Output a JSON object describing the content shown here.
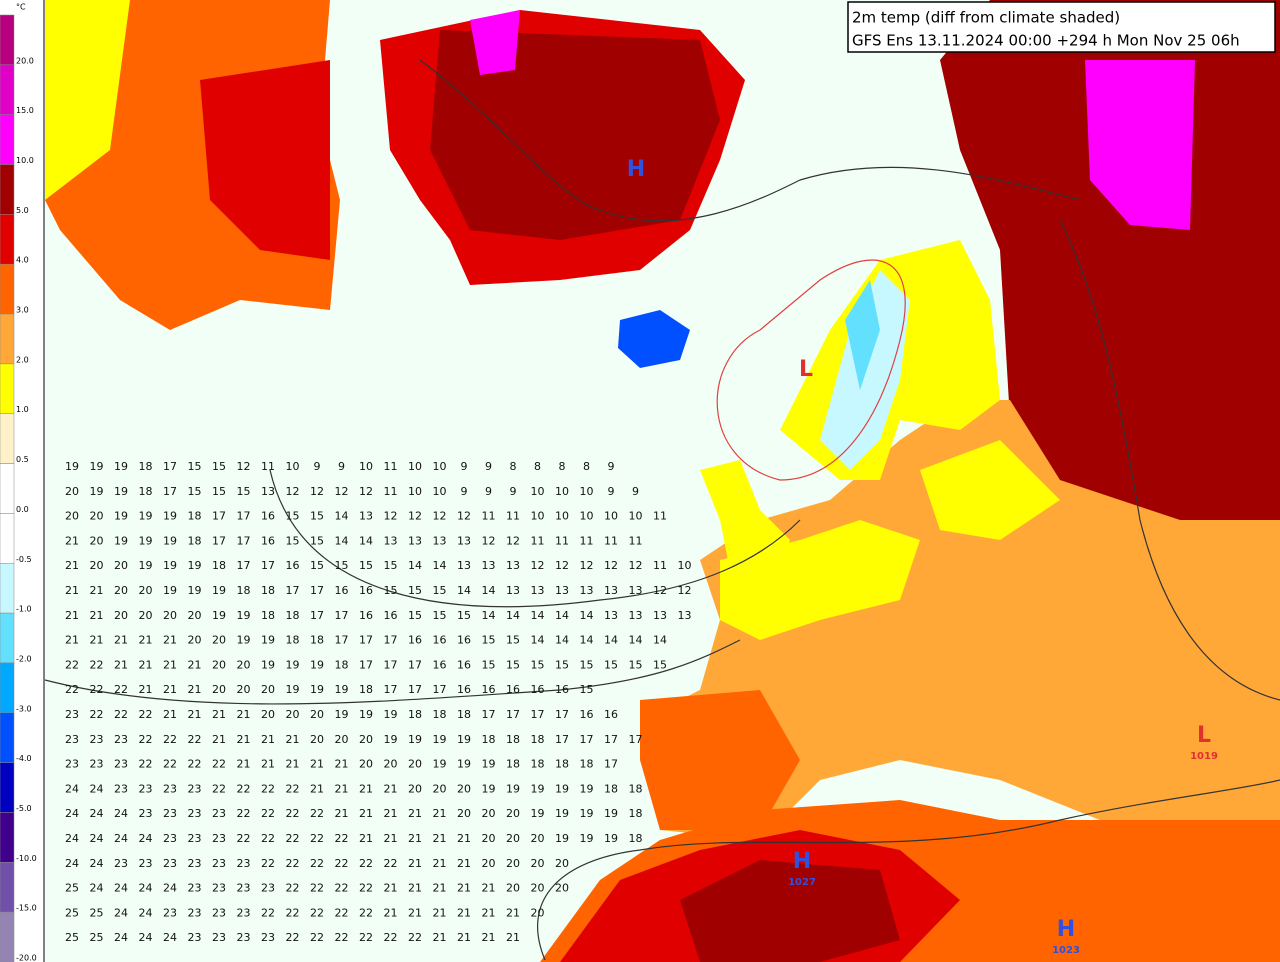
{
  "header": {
    "title": "2m temp (diff from climate shaded)",
    "subtitle": "GFS Ens 13.11.2024 00:00 +294 h Mon Nov 25 06h"
  },
  "legend": {
    "unit": "°C",
    "labels": [
      "20.0",
      "15.0",
      "10.0",
      "5.0",
      "4.0",
      "3.0",
      "2.0",
      "1.0",
      "0.5",
      "0.0",
      "-0.5",
      "-1.0",
      "-2.0",
      "-3.0",
      "-4.0",
      "-5.0",
      "-10.0",
      "-15.0",
      "-20.0"
    ],
    "colors": [
      "#b8007f",
      "#e000c8",
      "#ff00ff",
      "#a00000",
      "#e00000",
      "#ff6400",
      "#ffa838",
      "#ffff00",
      "#fff2c8",
      "#ffffff",
      "#ffffff",
      "#c8f8ff",
      "#64e0ff",
      "#00a8ff",
      "#0050ff",
      "#0000c0",
      "#40008c",
      "#7050a8",
      "#9484b4"
    ]
  },
  "pressure_centers": [
    {
      "label": "L",
      "kind": "low"
    },
    {
      "label": "H",
      "kind": "high"
    },
    {
      "label": "H",
      "kind": "high",
      "value": "1027"
    },
    {
      "label": "L",
      "kind": "low",
      "value": "1019"
    },
    {
      "label": "H",
      "kind": "high",
      "value": "1023"
    }
  ],
  "grid_rows": [
    [
      19,
      19,
      19,
      18,
      17,
      15,
      15,
      12,
      11,
      10,
      9,
      9,
      10,
      11,
      10,
      10,
      9,
      9,
      8,
      8,
      8,
      8,
      9
    ],
    [
      20,
      19,
      19,
      18,
      17,
      15,
      15,
      15,
      13,
      12,
      12,
      12,
      12,
      11,
      10,
      10,
      9,
      9,
      9,
      10,
      10,
      10,
      9,
      9
    ],
    [
      20,
      20,
      19,
      19,
      19,
      18,
      17,
      17,
      16,
      15,
      15,
      14,
      13,
      12,
      12,
      12,
      12,
      11,
      11,
      10,
      10,
      10,
      10,
      10,
      11
    ],
    [
      21,
      20,
      19,
      19,
      19,
      18,
      17,
      17,
      16,
      15,
      15,
      14,
      14,
      13,
      13,
      13,
      13,
      12,
      12,
      11,
      11,
      11,
      11,
      11
    ],
    [
      21,
      20,
      20,
      19,
      19,
      19,
      18,
      17,
      17,
      16,
      15,
      15,
      15,
      15,
      14,
      14,
      13,
      13,
      13,
      12,
      12,
      12,
      12,
      12,
      11,
      10
    ],
    [
      21,
      21,
      20,
      20,
      19,
      19,
      19,
      18,
      18,
      17,
      17,
      16,
      16,
      15,
      15,
      15,
      14,
      14,
      13,
      13,
      13,
      13,
      13,
      13,
      12,
      12
    ],
    [
      21,
      21,
      20,
      20,
      20,
      20,
      19,
      19,
      18,
      18,
      17,
      17,
      16,
      16,
      15,
      15,
      15,
      14,
      14,
      14,
      14,
      14,
      13,
      13,
      13,
      13
    ],
    [
      21,
      21,
      21,
      21,
      21,
      20,
      20,
      19,
      19,
      18,
      18,
      17,
      17,
      17,
      16,
      16,
      16,
      15,
      15,
      14,
      14,
      14,
      14,
      14,
      14
    ],
    [
      22,
      22,
      21,
      21,
      21,
      21,
      20,
      20,
      19,
      19,
      19,
      18,
      17,
      17,
      17,
      16,
      16,
      15,
      15,
      15,
      15,
      15,
      15,
      15,
      15
    ],
    [
      22,
      22,
      22,
      21,
      21,
      21,
      20,
      20,
      20,
      19,
      19,
      19,
      18,
      17,
      17,
      17,
      16,
      16,
      16,
      16,
      16,
      15
    ],
    [
      23,
      22,
      22,
      22,
      21,
      21,
      21,
      21,
      20,
      20,
      20,
      19,
      19,
      19,
      18,
      18,
      18,
      17,
      17,
      17,
      17,
      16,
      16
    ],
    [
      23,
      23,
      23,
      22,
      22,
      22,
      21,
      21,
      21,
      21,
      20,
      20,
      20,
      19,
      19,
      19,
      19,
      18,
      18,
      18,
      17,
      17,
      17,
      17
    ],
    [
      23,
      23,
      23,
      22,
      22,
      22,
      22,
      21,
      21,
      21,
      21,
      21,
      20,
      20,
      20,
      19,
      19,
      19,
      18,
      18,
      18,
      18,
      17
    ],
    [
      24,
      24,
      23,
      23,
      23,
      23,
      22,
      22,
      22,
      22,
      21,
      21,
      21,
      21,
      20,
      20,
      20,
      19,
      19,
      19,
      19,
      19,
      18,
      18
    ],
    [
      24,
      24,
      24,
      23,
      23,
      23,
      23,
      22,
      22,
      22,
      22,
      21,
      21,
      21,
      21,
      21,
      20,
      20,
      20,
      19,
      19,
      19,
      19,
      18
    ],
    [
      24,
      24,
      24,
      24,
      23,
      23,
      23,
      22,
      22,
      22,
      22,
      22,
      21,
      21,
      21,
      21,
      21,
      20,
      20,
      20,
      19,
      19,
      19,
      18
    ],
    [
      24,
      24,
      23,
      23,
      23,
      23,
      23,
      23,
      22,
      22,
      22,
      22,
      22,
      22,
      21,
      21,
      21,
      20,
      20,
      20,
      20
    ],
    [
      25,
      24,
      24,
      24,
      24,
      23,
      23,
      23,
      23,
      22,
      22,
      22,
      22,
      21,
      21,
      21,
      21,
      21,
      20,
      20,
      20
    ],
    [
      25,
      25,
      24,
      24,
      23,
      23,
      23,
      23,
      22,
      22,
      22,
      22,
      22,
      21,
      21,
      21,
      21,
      21,
      21,
      20
    ],
    [
      25,
      25,
      24,
      24,
      24,
      23,
      23,
      23,
      23,
      22,
      22,
      22,
      22,
      22,
      22,
      21,
      21,
      21,
      21
    ]
  ]
}
